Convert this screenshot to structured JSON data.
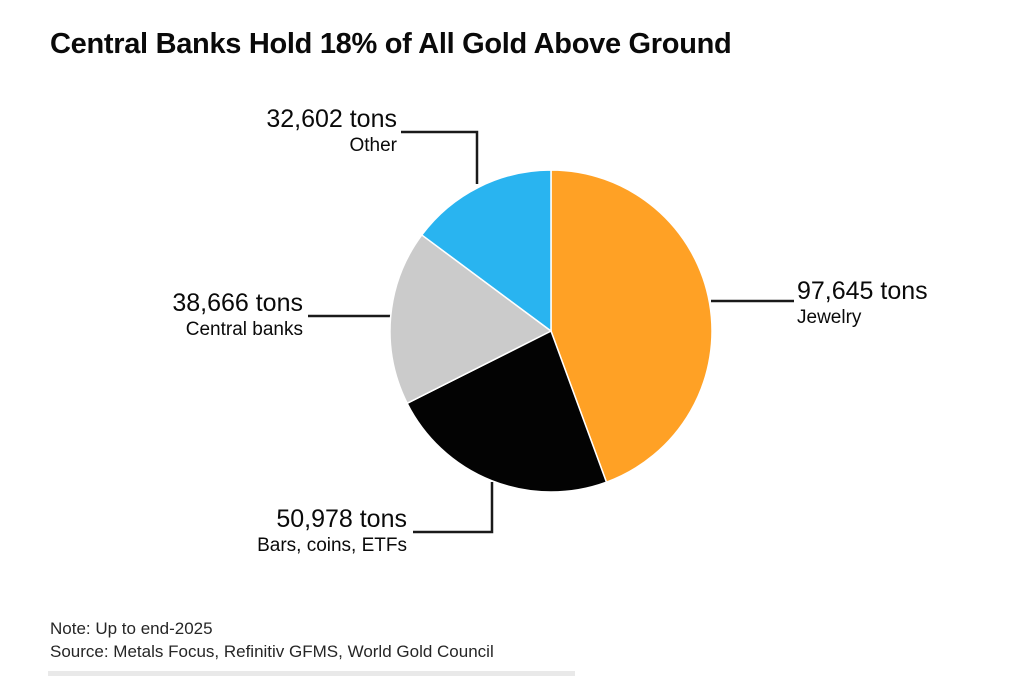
{
  "chart_data": {
    "type": "pie",
    "title": "Central Banks Hold 18% of All Gold Above Ground",
    "unit": "tons",
    "start_angle_deg": 0,
    "direction": "clockwise",
    "legend_position": "callout-labels",
    "slices": [
      {
        "label": "Jewelry",
        "value": 97645,
        "value_label": "97,645 tons",
        "color": "#FFA125"
      },
      {
        "label": "Bars, coins, ETFs",
        "value": 50978,
        "value_label": "50,978 tons",
        "color": "#030303"
      },
      {
        "label": "Central banks",
        "value": 38666,
        "value_label": "38,666 tons",
        "color": "#CBCBCB"
      },
      {
        "label": "Other",
        "value": 32602,
        "value_label": "32,602 tons",
        "color": "#29B4F0"
      }
    ],
    "note": "Note: Up to end-2025",
    "source": "Source: Metals Focus, Refinitiv GFMS, World Gold Council"
  }
}
